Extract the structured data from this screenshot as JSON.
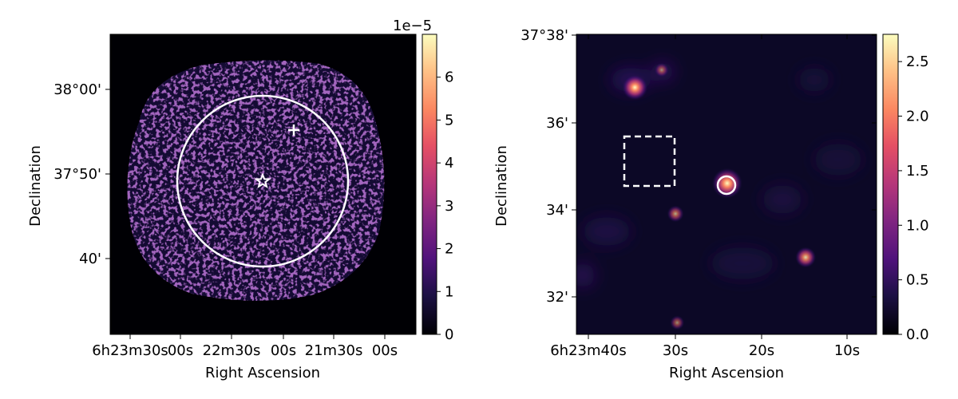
{
  "chart_data": [
    {
      "type": "heatmap",
      "panel": "left",
      "title": "",
      "xlabel": "Right Ascension",
      "ylabel": "Declination",
      "x_ticks": [
        {
          "label": "6h23m30s"
        },
        {
          "label": "00s"
        },
        {
          "label": "22m30s"
        },
        {
          "label": "00s"
        },
        {
          "label": "21m30s"
        },
        {
          "label": "00s"
        }
      ],
      "y_ticks": [
        {
          "label": "38°00'"
        },
        {
          "label": "37°50'"
        },
        {
          "label": "40'"
        }
      ],
      "colormap": "magma",
      "colorbar": {
        "range": [
          0,
          7
        ],
        "ticks": [
          "0",
          "1",
          "2",
          "3",
          "4",
          "5",
          "6"
        ],
        "offset_text": "1e−5"
      },
      "markers": [
        {
          "shape": "circle",
          "color": "#ffffff"
        },
        {
          "shape": "star",
          "color": "#ffffff"
        },
        {
          "shape": "plus",
          "color": "#ffffff"
        }
      ],
      "emission": "patchy ring-shaped field of faint emission (~1e-5)"
    },
    {
      "type": "heatmap",
      "panel": "right",
      "title": "",
      "xlabel": "Right Ascension",
      "ylabel": "Declination",
      "x_ticks": [
        {
          "label": "6h23m40s"
        },
        {
          "label": "30s"
        },
        {
          "label": "20s"
        },
        {
          "label": "10s"
        }
      ],
      "y_ticks": [
        {
          "label": "37°38'"
        },
        {
          "label": "36'"
        },
        {
          "label": "34'"
        },
        {
          "label": "32'"
        }
      ],
      "colormap": "magma",
      "colorbar": {
        "range": [
          0,
          2.75
        ],
        "ticks": [
          "0.0",
          "0.5",
          "1.0",
          "1.5",
          "2.0",
          "2.5"
        ]
      },
      "sources": [
        {
          "ra_s": 34.6,
          "dec": "37°36.8'",
          "peak": 2.0
        },
        {
          "ra_s": 23.9,
          "dec": "37°34.6'",
          "peak": 2.6
        },
        {
          "ra_s": 14.8,
          "dec": "37°32.9'",
          "peak": 1.4
        },
        {
          "ra_s": 29.9,
          "dec": "37°33.9'",
          "peak": 0.9
        },
        {
          "ra_s": 31.5,
          "dec": "37°37.2'",
          "peak": 0.6
        },
        {
          "ra_s": 29.7,
          "dec": "37°31.4'",
          "peak": 0.6
        }
      ],
      "markers": [
        {
          "shape": "circle",
          "color": "#ffffff"
        },
        {
          "shape": "dashed-box",
          "color": "#ffffff"
        }
      ]
    }
  ]
}
